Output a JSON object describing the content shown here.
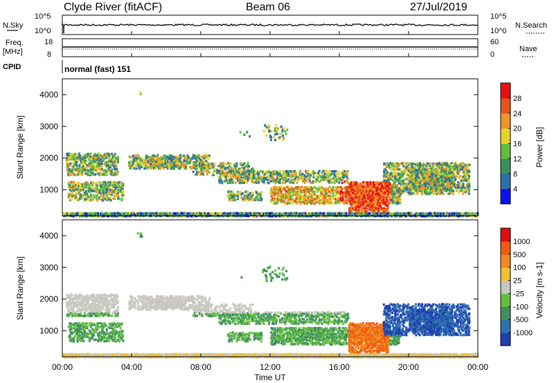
{
  "header": {
    "station": "Clyde River (fitACF)",
    "beam": "Beam 06",
    "date": "27/Jul/2019"
  },
  "noise_panel": {
    "left_label": "N.Sky",
    "right_label": "N.Search",
    "left_ticks": [
      "10^5",
      "10^0"
    ],
    "right_ticks": [
      "10^5",
      "10^0"
    ]
  },
  "freq_panel": {
    "left_label_1": "Freq.",
    "left_label_2": "[MHz]",
    "right_label": "Nave",
    "left_ticks": [
      "18",
      "8"
    ],
    "right_ticks": [
      "60",
      "0"
    ]
  },
  "cpid": {
    "label": "CPID",
    "value": "normal (fast) 151"
  },
  "chart_data": [
    {
      "type": "heatmap",
      "parameter": "power",
      "ylabel": "Slant Range [km]",
      "y_ticks": [
        "1000",
        "2000",
        "3000",
        "4000"
      ],
      "ylim": [
        180,
        4500
      ],
      "xlim_hours": [
        0,
        24
      ],
      "colorbar": {
        "label": "Power [dB]",
        "ticks": [
          "4",
          "8",
          "12",
          "16",
          "20",
          "24",
          "28"
        ],
        "range": [
          0,
          30
        ],
        "colors": [
          "#1010ee",
          "#2e6fa8",
          "#3c8f5a",
          "#5fbf3f",
          "#e8d22a",
          "#f09628",
          "#e8501e",
          "#e81010"
        ]
      }
    },
    {
      "type": "heatmap",
      "parameter": "velocity",
      "ylabel": "Slant Range [km]",
      "y_ticks": [
        "1000",
        "2000",
        "3000",
        "4000"
      ],
      "ylim": [
        180,
        4500
      ],
      "xlim_hours": [
        0,
        24
      ],
      "colorbar": {
        "label": "Velocity [m s-1]",
        "ticks": [
          "1000",
          "500",
          "100",
          "25",
          "-25",
          "-100",
          "-500",
          "-1000"
        ],
        "colors": [
          "#2040b0",
          "#2f70b0",
          "#3f8f5f",
          "#66c040",
          "#c8c8c0",
          "#f0c030",
          "#f08a20",
          "#f05a10",
          "#e01010"
        ]
      }
    }
  ],
  "x_axis": {
    "ticks": [
      "00:00",
      "04:00",
      "08:00",
      "12:00",
      "16:00",
      "20:00",
      "00:00"
    ],
    "label": "Time UT"
  },
  "colors": {
    "noise_trace": "#000000",
    "background": "#ffffff"
  }
}
